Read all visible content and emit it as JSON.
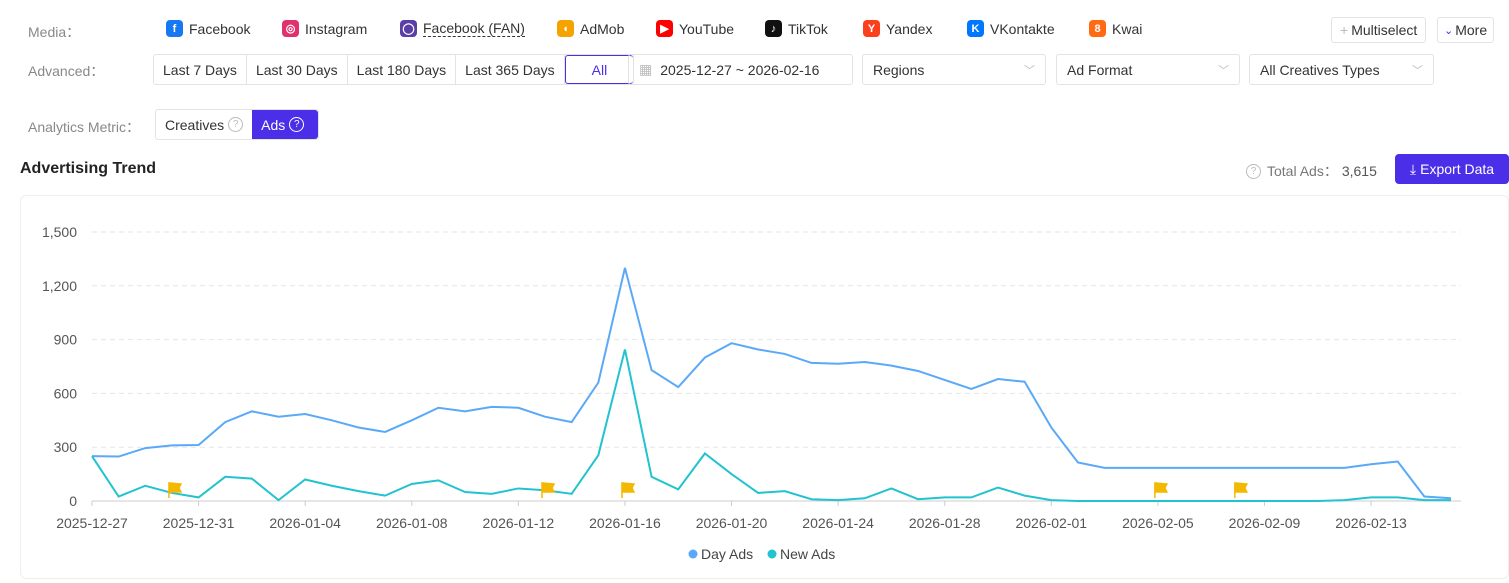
{
  "filters": {
    "media_label": "Media：",
    "media": [
      {
        "name": "Facebook",
        "icon": "facebook-icon",
        "color": "#1877f2",
        "glyph": "f"
      },
      {
        "name": "Instagram",
        "icon": "instagram-icon",
        "color": "#e1306c",
        "glyph": "◎"
      },
      {
        "name": "Facebook (FAN)",
        "icon": "fan-icon",
        "color": "#5b3fa8",
        "glyph": "◯"
      },
      {
        "name": "AdMob",
        "icon": "admob-icon",
        "color": "#f4a300",
        "glyph": "◖"
      },
      {
        "name": "YouTube",
        "icon": "youtube-icon",
        "color": "#ff0000",
        "glyph": "▶"
      },
      {
        "name": "TikTok",
        "icon": "tiktok-icon",
        "color": "#111111",
        "glyph": "♪"
      },
      {
        "name": "Yandex",
        "icon": "yandex-icon",
        "color": "#fc3f1d",
        "glyph": "Y"
      },
      {
        "name": "VKontakte",
        "icon": "vk-icon",
        "color": "#0077ff",
        "glyph": "K"
      },
      {
        "name": "Kwai",
        "icon": "kwai-icon",
        "color": "#ff6a13",
        "glyph": "8"
      }
    ],
    "multiselect": "Multiselect",
    "more": "More",
    "advanced_label": "Advanced：",
    "ranges": [
      "Last 7 Days",
      "Last 30 Days",
      "Last 180 Days",
      "Last 365 Days",
      "All"
    ],
    "date_range": "2025-12-27 ~ 2026-02-16",
    "regions": "Regions",
    "ad_format": "Ad Format",
    "creative_types": "All Creatives Types",
    "metric_label": "Analytics Metric：",
    "metric_creatives": "Creatives",
    "metric_ads": "Ads"
  },
  "section": {
    "title": "Advertising Trend",
    "total_label": "Total Ads：",
    "total_value": "3,615",
    "export": "Export Data"
  },
  "colors": {
    "accent": "#4a2ee8",
    "day": "#5aa9f8",
    "new": "#22c3cf",
    "flag": "#f5b800"
  },
  "chart_data": {
    "type": "line",
    "title": "Advertising Trend",
    "start_date": "2025-12-27",
    "end_date": "2026-02-16",
    "x_ticks": [
      "2025-12-27",
      "2025-12-31",
      "2026-01-04",
      "2026-01-08",
      "2026-01-12",
      "2026-01-16",
      "2026-01-20",
      "2026-01-24",
      "2026-01-28",
      "2026-02-01",
      "2026-02-05",
      "2026-02-09",
      "2026-02-13"
    ],
    "y_ticks": [
      "0",
      "300",
      "600",
      "900",
      "1,200",
      "1,500"
    ],
    "ylim": [
      0,
      1500
    ],
    "grid": true,
    "legend": "bottom-center",
    "series": [
      {
        "name": "Day Ads",
        "values": [
          250,
          248,
          295,
          310,
          312,
          440,
          500,
          470,
          485,
          450,
          410,
          385,
          450,
          520,
          500,
          525,
          520,
          470,
          440,
          660,
          1300,
          730,
          635,
          800,
          880,
          845,
          820,
          770,
          765,
          775,
          755,
          725,
          675,
          625,
          680,
          665,
          410,
          215,
          185,
          185,
          185,
          185,
          185,
          185,
          185,
          185,
          185,
          185,
          205,
          220,
          25,
          15
        ]
      },
      {
        "name": "New Ads",
        "values": [
          250,
          25,
          85,
          45,
          20,
          135,
          125,
          5,
          120,
          85,
          55,
          30,
          95,
          115,
          50,
          40,
          70,
          60,
          40,
          255,
          845,
          135,
          65,
          265,
          150,
          45,
          55,
          10,
          5,
          15,
          70,
          10,
          20,
          20,
          75,
          30,
          5,
          0,
          0,
          0,
          0,
          0,
          0,
          0,
          0,
          0,
          0,
          5,
          20,
          20,
          5,
          5
        ]
      }
    ],
    "flag_day_indexes": [
      3,
      17,
      20,
      40,
      43
    ]
  }
}
